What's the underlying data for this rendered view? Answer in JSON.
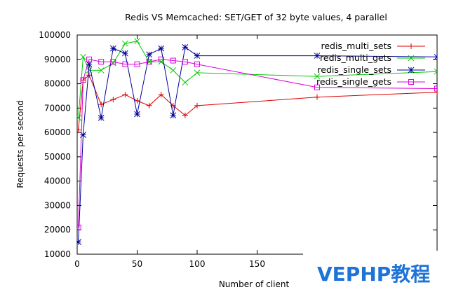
{
  "chart_data": {
    "type": "line",
    "title": "Redis VS Memcached: SET/GET of 32 byte values, 4 parallel",
    "xlabel": "Number of client",
    "ylabel": "Requests per second",
    "xlim": [
      0,
      300
    ],
    "ylim": [
      10000,
      100000
    ],
    "x_ticks": [
      0,
      50,
      100,
      150
    ],
    "y_ticks": [
      10000,
      20000,
      30000,
      40000,
      50000,
      60000,
      70000,
      80000,
      90000,
      100000
    ],
    "grid": false,
    "legend_position": "top-right",
    "series": [
      {
        "name": "redis_multi_sets",
        "color": "#dd0000",
        "marker": "plus",
        "x": [
          1,
          5,
          10,
          20,
          30,
          40,
          50,
          60,
          70,
          80,
          90,
          100,
          200,
          300
        ],
        "y": [
          61000,
          81500,
          83500,
          71500,
          73500,
          75500,
          73000,
          71000,
          75500,
          71000,
          67000,
          71000,
          74500,
          76500
        ]
      },
      {
        "name": "redis_multi_gets",
        "color": "#00cc00",
        "marker": "cross",
        "x": [
          1,
          5,
          10,
          20,
          30,
          40,
          50,
          60,
          70,
          80,
          90,
          100,
          200,
          300
        ],
        "y": [
          66000,
          91000,
          85500,
          85500,
          88500,
          96500,
          97500,
          89000,
          89000,
          85500,
          80500,
          84500,
          83000,
          85000
        ]
      },
      {
        "name": "redis_single_sets",
        "color": "#000099",
        "marker": "asterisk",
        "x": [
          1,
          5,
          10,
          20,
          30,
          40,
          50,
          60,
          70,
          80,
          90,
          100,
          200,
          300
        ],
        "y": [
          15000,
          59000,
          88000,
          66000,
          94500,
          92500,
          67500,
          92000,
          94500,
          67000,
          95000,
          91500,
          91500,
          91000
        ]
      },
      {
        "name": "redis_single_gets",
        "color": "#dd00dd",
        "marker": "square",
        "x": [
          1,
          5,
          10,
          20,
          30,
          40,
          50,
          60,
          70,
          80,
          90,
          100,
          200,
          300
        ],
        "y": [
          21000,
          81500,
          90000,
          89000,
          89000,
          88000,
          88000,
          89000,
          90000,
          89500,
          89000,
          88000,
          78500,
          78000
        ]
      }
    ]
  },
  "watermark": {
    "text": "VEPHP教程"
  }
}
